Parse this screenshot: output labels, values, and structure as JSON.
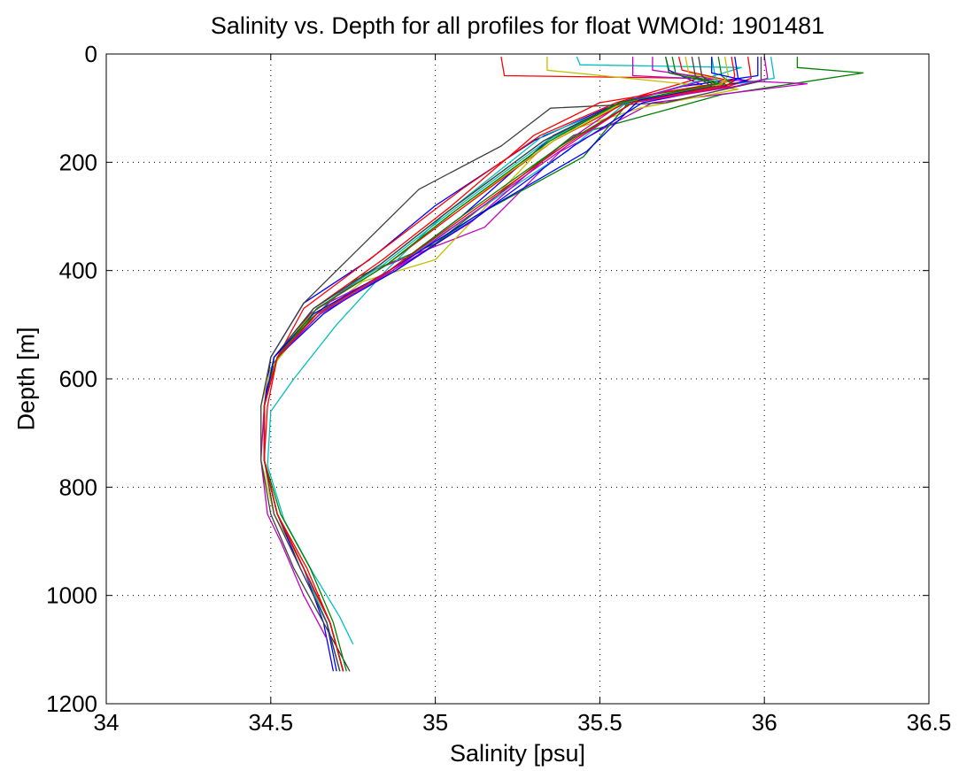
{
  "chart_data": {
    "type": "line",
    "title": "Salinity vs. Depth for all profiles for float WMOId: 1901481",
    "xlabel": "Salinity [psu]",
    "ylabel": "Depth [m]",
    "xlim": [
      34,
      36.5
    ],
    "ylim": [
      0,
      1200
    ],
    "y_reversed": true,
    "grid": true,
    "legend": "none",
    "x_ticks": [
      "34",
      "34.5",
      "35",
      "35.5",
      "36",
      "36.5"
    ],
    "y_ticks": [
      "0",
      "200",
      "400",
      "600",
      "800",
      "1000",
      "1200"
    ],
    "colors": [
      "#0000ff",
      "#008000",
      "#ff0000",
      "#00bfbf",
      "#bf00bf",
      "#bfbf00",
      "#404040"
    ],
    "series": [
      {
        "color": "#0000ff",
        "salinity": [
          35.7,
          35.71,
          35.82,
          35.52,
          35.3,
          35.0,
          34.8,
          34.6,
          34.5,
          34.48,
          34.48,
          34.52,
          34.6,
          34.66,
          34.69
        ],
        "depth": [
          5,
          30,
          60,
          100,
          160,
          280,
          380,
          460,
          560,
          650,
          750,
          850,
          950,
          1050,
          1140
        ]
      },
      {
        "color": "#008000",
        "salinity": [
          36.1,
          36.1,
          36.3,
          35.87,
          35.42,
          35.0,
          34.77,
          34.62,
          34.51,
          34.48,
          34.48,
          34.52,
          34.6,
          34.67,
          34.71
        ],
        "depth": [
          5,
          25,
          35,
          75,
          150,
          350,
          410,
          490,
          570,
          650,
          750,
          850,
          950,
          1050,
          1140
        ]
      },
      {
        "color": "#ff0000",
        "salinity": [
          35.2,
          35.21,
          35.8,
          35.55,
          35.32,
          35.08,
          34.82,
          34.6,
          34.52,
          34.48,
          34.48,
          34.52,
          34.61,
          34.68,
          34.72
        ],
        "depth": [
          5,
          40,
          45,
          90,
          150,
          250,
          370,
          470,
          560,
          650,
          750,
          850,
          950,
          1050,
          1140
        ]
      },
      {
        "color": "#00bfbf",
        "salinity": [
          35.43,
          35.44,
          35.93,
          35.58,
          35.33,
          35.02,
          34.85,
          34.7,
          34.57,
          34.5,
          34.49,
          34.54,
          34.63,
          34.71,
          34.75
        ],
        "depth": [
          5,
          20,
          25,
          90,
          150,
          300,
          400,
          500,
          600,
          660,
          760,
          860,
          960,
          1040,
          1090
        ]
      },
      {
        "color": "#bf00bf",
        "salinity": [
          35.6,
          35.6,
          36.13,
          35.66,
          35.38,
          35.15,
          34.81,
          34.62,
          34.52,
          34.48,
          34.47,
          34.49,
          34.53,
          34.6,
          34.67
        ],
        "depth": [
          5,
          40,
          55,
          90,
          180,
          320,
          400,
          480,
          560,
          650,
          750,
          850,
          900,
          1000,
          1080
        ]
      },
      {
        "color": "#bfbf00",
        "salinity": [
          35.34,
          35.34,
          35.92,
          35.62,
          35.36,
          35.0,
          34.78,
          34.61,
          34.5,
          34.47,
          34.47,
          34.51,
          34.6,
          34.67,
          34.71
        ],
        "depth": [
          5,
          30,
          65,
          100,
          150,
          380,
          420,
          500,
          580,
          650,
          750,
          850,
          950,
          1050,
          1140
        ]
      },
      {
        "color": "#404040",
        "salinity": [
          35.99,
          35.99,
          35.7,
          35.35,
          35.2,
          34.95,
          34.75,
          34.6,
          34.5,
          34.47,
          34.47,
          34.5,
          34.57,
          34.66,
          34.74
        ],
        "depth": [
          5,
          50,
          90,
          100,
          170,
          250,
          370,
          460,
          560,
          650,
          750,
          850,
          950,
          1050,
          1140
        ]
      },
      {
        "color": "#0000ff",
        "salinity": [
          35.98,
          35.98,
          35.75,
          35.56,
          35.36,
          35.08,
          34.86,
          34.66,
          34.52,
          34.48,
          34.48,
          34.52,
          34.59,
          34.67,
          34.7
        ],
        "depth": [
          5,
          40,
          60,
          90,
          150,
          300,
          400,
          480,
          560,
          650,
          750,
          850,
          950,
          1050,
          1140
        ]
      },
      {
        "color": "#008000",
        "salinity": [
          35.72,
          35.73,
          35.88,
          35.6,
          35.45,
          35.12,
          34.88,
          34.64,
          34.51,
          34.48,
          34.48,
          34.53,
          34.62,
          34.69,
          34.73
        ],
        "depth": [
          5,
          35,
          55,
          80,
          190,
          300,
          400,
          480,
          560,
          650,
          750,
          850,
          950,
          1050,
          1140
        ]
      },
      {
        "color": "#ff0000",
        "salinity": [
          35.74,
          35.75,
          35.9,
          35.5,
          35.3,
          35.05,
          34.84,
          34.63,
          34.52,
          34.49,
          34.48,
          34.52,
          34.6,
          34.68,
          34.72
        ],
        "depth": [
          5,
          30,
          50,
          90,
          150,
          280,
          380,
          470,
          560,
          650,
          750,
          850,
          950,
          1050,
          1140
        ]
      },
      {
        "color": "#00bfbf",
        "salinity": [
          36.02,
          36.03,
          35.86,
          35.58,
          35.4,
          35.1,
          34.86,
          34.65,
          34.52,
          34.48,
          34.48,
          34.52,
          34.6,
          34.67,
          34.71
        ],
        "depth": [
          5,
          45,
          60,
          90,
          180,
          300,
          400,
          480,
          560,
          650,
          750,
          850,
          950,
          1050,
          1140
        ]
      },
      {
        "color": "#bf00bf",
        "salinity": [
          35.66,
          35.66,
          35.84,
          35.57,
          35.38,
          35.11,
          34.87,
          34.64,
          34.52,
          34.48,
          34.48,
          34.52,
          34.6,
          34.68,
          34.72
        ],
        "depth": [
          5,
          30,
          45,
          90,
          170,
          310,
          400,
          470,
          560,
          650,
          750,
          850,
          950,
          1050,
          1140
        ]
      },
      {
        "color": "#bfbf00",
        "salinity": [
          35.76,
          35.77,
          35.92,
          35.57,
          35.36,
          35.06,
          34.85,
          34.64,
          34.51,
          34.48,
          34.48,
          34.52,
          34.6,
          34.68,
          34.72
        ],
        "depth": [
          5,
          35,
          55,
          90,
          160,
          290,
          390,
          470,
          560,
          650,
          750,
          850,
          950,
          1050,
          1140
        ]
      },
      {
        "color": "#404040",
        "salinity": [
          35.8,
          35.81,
          35.85,
          35.55,
          35.33,
          35.04,
          34.83,
          34.63,
          34.51,
          34.48,
          34.48,
          34.51,
          34.59,
          34.67,
          34.71
        ],
        "depth": [
          5,
          40,
          60,
          95,
          160,
          290,
          390,
          470,
          560,
          650,
          750,
          850,
          950,
          1050,
          1140
        ]
      },
      {
        "color": "#0000ff",
        "salinity": [
          35.91,
          35.92,
          35.88,
          35.63,
          35.42,
          35.13,
          34.88,
          34.65,
          34.52,
          34.48,
          34.48,
          34.52,
          34.6,
          34.68,
          34.72
        ],
        "depth": [
          5,
          45,
          60,
          90,
          170,
          300,
          400,
          480,
          560,
          650,
          750,
          850,
          950,
          1050,
          1140
        ]
      },
      {
        "color": "#008000",
        "salinity": [
          35.86,
          35.87,
          35.9,
          35.6,
          35.38,
          35.08,
          34.86,
          34.64,
          34.52,
          34.48,
          34.48,
          34.52,
          34.6,
          34.68,
          34.72
        ],
        "depth": [
          5,
          40,
          55,
          90,
          170,
          300,
          400,
          480,
          560,
          650,
          750,
          850,
          950,
          1050,
          1140
        ]
      },
      {
        "color": "#ff0000",
        "salinity": [
          35.95,
          35.96,
          35.89,
          35.58,
          35.36,
          35.07,
          34.85,
          34.64,
          34.52,
          34.48,
          34.48,
          34.52,
          34.6,
          34.68,
          34.72
        ],
        "depth": [
          5,
          45,
          60,
          90,
          160,
          290,
          390,
          470,
          560,
          650,
          750,
          850,
          950,
          1050,
          1140
        ]
      },
      {
        "color": "#00bfbf",
        "salinity": [
          35.84,
          35.85,
          35.86,
          35.55,
          35.34,
          35.05,
          34.84,
          34.63,
          34.51,
          34.48,
          34.48,
          34.52,
          34.6,
          34.68,
          34.72
        ],
        "depth": [
          5,
          40,
          60,
          95,
          160,
          290,
          390,
          470,
          560,
          650,
          750,
          850,
          950,
          1050,
          1140
        ]
      },
      {
        "color": "#bf00bf",
        "salinity": [
          36.0,
          36.01,
          35.91,
          35.6,
          35.4,
          35.1,
          34.87,
          34.65,
          34.52,
          34.48,
          34.48,
          34.52,
          34.6,
          34.68,
          34.72
        ],
        "depth": [
          5,
          45,
          60,
          90,
          170,
          300,
          400,
          480,
          560,
          650,
          750,
          850,
          950,
          1050,
          1140
        ]
      },
      {
        "color": "#bfbf00",
        "salinity": [
          35.88,
          35.89,
          35.87,
          35.57,
          35.36,
          35.06,
          34.85,
          34.64,
          34.52,
          34.48,
          34.48,
          34.52,
          34.6,
          34.68,
          34.72
        ],
        "depth": [
          5,
          40,
          55,
          90,
          160,
          290,
          390,
          470,
          560,
          650,
          750,
          850,
          950,
          1050,
          1140
        ]
      },
      {
        "color": "#404040",
        "salinity": [
          35.78,
          35.79,
          35.84,
          35.54,
          35.33,
          35.04,
          34.83,
          34.63,
          34.51,
          34.48,
          34.48,
          34.52,
          34.6,
          34.68,
          34.72
        ],
        "depth": [
          5,
          40,
          60,
          95,
          160,
          290,
          390,
          470,
          560,
          650,
          750,
          850,
          950,
          1050,
          1140
        ]
      },
      {
        "color": "#0000ff",
        "salinity": [
          35.84,
          35.84,
          35.95,
          35.62,
          35.46,
          35.12,
          34.86,
          34.63,
          34.51,
          34.48,
          34.48,
          34.52,
          34.6,
          34.68,
          34.72
        ],
        "depth": [
          5,
          35,
          50,
          85,
          180,
          300,
          400,
          480,
          560,
          650,
          750,
          850,
          950,
          1050,
          1140
        ]
      },
      {
        "color": "#008000",
        "salinity": [
          35.7,
          35.71,
          35.86,
          35.56,
          35.35,
          35.06,
          34.85,
          34.64,
          34.52,
          34.48,
          34.48,
          34.52,
          34.6,
          34.68,
          34.72
        ],
        "depth": [
          5,
          35,
          55,
          90,
          160,
          290,
          390,
          470,
          560,
          650,
          750,
          850,
          950,
          1050,
          1140
        ]
      },
      {
        "color": "#ff0000",
        "salinity": [
          35.9,
          35.91,
          35.9,
          35.6,
          35.39,
          35.09,
          34.86,
          34.64,
          34.52,
          34.48,
          34.48,
          34.52,
          34.6,
          34.68,
          34.72
        ],
        "depth": [
          5,
          40,
          55,
          90,
          170,
          300,
          400,
          480,
          560,
          650,
          750,
          850,
          950,
          1050,
          1140
        ]
      }
    ]
  }
}
